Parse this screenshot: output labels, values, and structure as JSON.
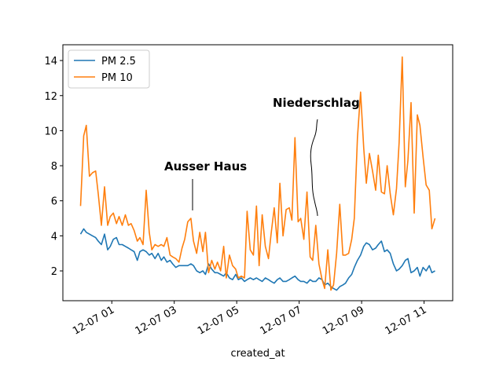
{
  "chart_data": {
    "type": "line",
    "xlabel": "created_at",
    "annotations": [
      "Ausser Haus",
      "Niederschlag"
    ],
    "legend": "upper left",
    "x": [
      "12-07 00:00",
      "12-07 00:06",
      "12-07 00:11",
      "12-07 00:17",
      "12-07 00:23",
      "12-07 00:29",
      "12-07 00:34",
      "12-07 00:40",
      "12-07 00:46",
      "12-07 00:52",
      "12-07 00:57",
      "12-07 01:03",
      "12-07 01:09",
      "12-07 01:14",
      "12-07 01:20",
      "12-07 01:26",
      "12-07 01:32",
      "12-07 01:37",
      "12-07 01:43",
      "12-07 01:49",
      "12-07 01:54",
      "12-07 02:00",
      "12-07 02:06",
      "12-07 02:12",
      "12-07 02:17",
      "12-07 02:23",
      "12-07 02:29",
      "12-07 02:35",
      "12-07 02:40",
      "12-07 02:46",
      "12-07 02:52",
      "12-07 02:57",
      "12-07 03:03",
      "12-07 03:09",
      "12-07 03:15",
      "12-07 03:20",
      "12-07 03:26",
      "12-07 03:32",
      "12-07 03:37",
      "12-07 03:43",
      "12-07 03:49",
      "12-07 03:55",
      "12-07 04:00",
      "12-07 04:06",
      "12-07 04:12",
      "12-07 04:18",
      "12-07 04:23",
      "12-07 04:29",
      "12-07 04:35",
      "12-07 04:40",
      "12-07 04:46",
      "12-07 04:52",
      "12-07 04:58",
      "12-07 05:03",
      "12-07 05:09",
      "12-07 05:15",
      "12-07 05:20",
      "12-07 05:26",
      "12-07 05:32",
      "12-07 05:38",
      "12-07 05:43",
      "12-07 05:49",
      "12-07 05:55",
      "12-07 06:01",
      "12-07 06:06",
      "12-07 06:12",
      "12-07 06:18",
      "12-07 06:23",
      "12-07 06:29",
      "12-07 06:35",
      "12-07 06:41",
      "12-07 06:46",
      "12-07 06:52",
      "12-07 06:58",
      "12-07 07:03",
      "12-07 07:09",
      "12-07 07:15",
      "12-07 07:21",
      "12-07 07:26",
      "12-07 07:32",
      "12-07 07:38",
      "12-07 07:44",
      "12-07 07:49",
      "12-07 07:55",
      "12-07 08:01",
      "12-07 08:06",
      "12-07 08:12",
      "12-07 08:18",
      "12-07 08:24",
      "12-07 08:29",
      "12-07 08:35",
      "12-07 08:41",
      "12-07 08:46",
      "12-07 08:52",
      "12-07 08:58",
      "12-07 09:04",
      "12-07 09:09",
      "12-07 09:15",
      "12-07 09:21",
      "12-07 09:27",
      "12-07 09:32",
      "12-07 09:38",
      "12-07 09:44",
      "12-07 09:49",
      "12-07 09:55",
      "12-07 10:01",
      "12-07 10:07",
      "12-07 10:12",
      "12-07 10:18",
      "12-07 10:24",
      "12-07 10:29",
      "12-07 10:35",
      "12-07 10:41",
      "12-07 10:47",
      "12-07 10:52",
      "12-07 10:58",
      "12-07 11:04",
      "12-07 11:10",
      "12-07 11:15",
      "12-07 11:21"
    ],
    "series": [
      {
        "name": "PM 2.5",
        "color": "#1f77b4",
        "values": [
          4.1,
          4.4,
          4.2,
          4.1,
          4.0,
          3.9,
          3.7,
          3.5,
          4.1,
          3.2,
          3.4,
          3.8,
          3.9,
          3.5,
          3.5,
          3.4,
          3.3,
          3.2,
          3.1,
          2.6,
          3.1,
          3.2,
          3.1,
          2.9,
          3.0,
          2.7,
          3.0,
          2.6,
          2.8,
          2.5,
          2.6,
          2.4,
          2.2,
          2.3,
          2.3,
          2.3,
          2.3,
          2.4,
          2.3,
          2.0,
          1.9,
          2.0,
          1.8,
          2.4,
          2.1,
          1.9,
          1.9,
          1.8,
          1.7,
          1.9,
          1.6,
          1.5,
          1.8,
          1.5,
          1.6,
          1.4,
          1.5,
          1.6,
          1.5,
          1.6,
          1.5,
          1.4,
          1.6,
          1.5,
          1.4,
          1.3,
          1.5,
          1.6,
          1.4,
          1.4,
          1.5,
          1.6,
          1.7,
          1.5,
          1.4,
          1.4,
          1.3,
          1.5,
          1.4,
          1.4,
          1.6,
          1.5,
          1.2,
          1.3,
          1.1,
          1.0,
          0.9,
          1.1,
          1.2,
          1.3,
          1.6,
          1.8,
          2.2,
          2.6,
          2.9,
          3.4,
          3.6,
          3.5,
          3.2,
          3.3,
          3.5,
          3.7,
          3.1,
          3.2,
          3.0,
          2.4,
          2.0,
          2.1,
          2.3,
          2.6,
          2.7,
          1.9,
          2.0,
          2.2,
          1.7,
          2.2,
          2.0,
          2.3,
          1.9,
          2.0
        ]
      },
      {
        "name": "PM 10",
        "color": "#ff7f0e",
        "values": [
          5.7,
          9.7,
          10.3,
          7.4,
          7.6,
          7.7,
          6.4,
          4.6,
          6.8,
          4.6,
          5.1,
          5.3,
          4.7,
          5.1,
          4.6,
          5.2,
          4.6,
          4.7,
          4.3,
          3.7,
          3.9,
          3.5,
          6.6,
          4.2,
          3.2,
          3.5,
          3.4,
          3.5,
          3.4,
          3.9,
          2.9,
          2.8,
          2.7,
          2.5,
          3.3,
          3.8,
          4.8,
          5.0,
          3.7,
          3.0,
          4.2,
          3.1,
          4.2,
          1.9,
          2.6,
          2.1,
          2.5,
          2.0,
          3.4,
          1.6,
          2.9,
          2.3,
          2.1,
          1.6,
          1.7,
          1.6,
          5.4,
          3.2,
          2.9,
          5.7,
          2.3,
          5.2,
          3.4,
          2.7,
          4.1,
          5.6,
          3.6,
          7.0,
          4.0,
          5.5,
          5.6,
          4.9,
          9.6,
          4.8,
          5.0,
          3.8,
          6.5,
          2.8,
          2.6,
          4.6,
          2.4,
          1.5,
          1.0,
          3.2,
          0.9,
          1.2,
          3.0,
          5.8,
          2.9,
          2.9,
          3.0,
          3.8,
          5.0,
          9.6,
          12.2,
          9.0,
          7.0,
          8.7,
          7.7,
          6.6,
          8.6,
          6.5,
          6.4,
          8.0,
          6.4,
          5.2,
          6.7,
          9.3,
          14.2,
          6.8,
          8.3,
          11.6,
          5.3,
          10.9,
          10.3,
          8.5,
          6.9,
          6.6,
          4.4,
          5.0
        ]
      }
    ],
    "xlim": [
      "12-06 23:26",
      "12-07 11:55"
    ],
    "xticks": [
      {
        "value": "12-07 01:00",
        "label": "12-07 01"
      },
      {
        "value": "12-07 03:00",
        "label": "12-07 03"
      },
      {
        "value": "12-07 05:00",
        "label": "12-07 05"
      },
      {
        "value": "12-07 07:00",
        "label": "12-07 07"
      },
      {
        "value": "12-07 09:00",
        "label": "12-07 09"
      },
      {
        "value": "12-07 11:00",
        "label": "12-07 11"
      }
    ],
    "ylim": [
      0.3,
      14.9
    ],
    "yticks": [
      2,
      4,
      6,
      8,
      10,
      12,
      14
    ]
  }
}
